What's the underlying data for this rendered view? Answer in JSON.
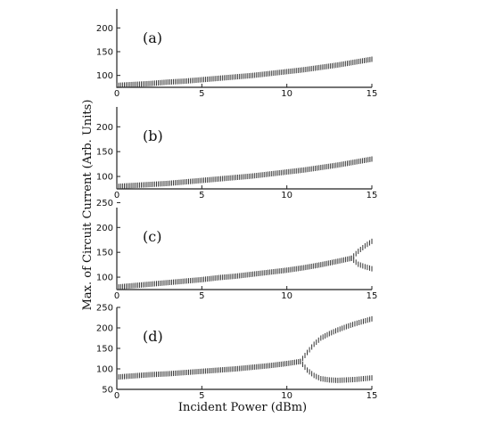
{
  "chart_data": [
    {
      "type": "scatter",
      "panel_label": "(a)",
      "xlim": [
        0,
        15
      ],
      "ylim": [
        75,
        240
      ],
      "x_ticks": [
        "0",
        "5",
        "10",
        "15"
      ],
      "y_ticks": [
        "100",
        "150",
        "200"
      ],
      "series": [
        {
          "x": [
            0,
            1,
            2,
            3,
            4,
            5,
            6,
            7,
            8,
            9,
            10,
            11,
            12,
            13,
            14,
            15
          ],
          "values": [
            79,
            81,
            83,
            86,
            88,
            91,
            94,
            97,
            100,
            104,
            108,
            112,
            117,
            122,
            128,
            134
          ]
        }
      ]
    },
    {
      "type": "scatter",
      "panel_label": "(b)",
      "xlim": [
        0,
        15
      ],
      "ylim": [
        75,
        240
      ],
      "x_ticks": [
        "0",
        "5",
        "10",
        "15"
      ],
      "y_ticks": [
        "100",
        "150",
        "200"
      ],
      "series": [
        {
          "x": [
            0,
            1,
            2,
            3,
            4,
            5,
            6,
            7,
            8,
            9,
            10,
            11,
            12,
            13,
            14,
            15
          ],
          "values": [
            80,
            82,
            84,
            86,
            89,
            92,
            95,
            98,
            101,
            105,
            109,
            113,
            118,
            123,
            129,
            135
          ]
        }
      ]
    },
    {
      "type": "scatter",
      "panel_label": "(c)",
      "xlim": [
        0,
        15
      ],
      "ylim": [
        75,
        240
      ],
      "x_ticks": [
        "0",
        "5",
        "10",
        "15"
      ],
      "y_ticks": [
        "100",
        "150",
        "200",
        "250"
      ],
      "series": [
        {
          "x": [
            0,
            1,
            2,
            3,
            4,
            5,
            6,
            7,
            8,
            9,
            10,
            11,
            12,
            13,
            13.8,
            14.2,
            14.6,
            15
          ],
          "values": [
            80,
            83,
            86,
            89,
            92,
            95,
            99,
            102,
            106,
            110,
            114,
            119,
            125,
            132,
            138,
            152,
            163,
            172
          ]
        },
        {
          "x": [
            13.8,
            14.2,
            14.6,
            15
          ],
          "values": [
            138,
            126,
            121,
            117
          ]
        }
      ]
    },
    {
      "type": "scatter",
      "panel_label": "(d)",
      "xlim": [
        0,
        15
      ],
      "ylim": [
        50,
        250
      ],
      "x_ticks": [
        "0",
        "5",
        "10",
        "15"
      ],
      "y_ticks": [
        "50",
        "100",
        "150",
        "200",
        "250"
      ],
      "series": [
        {
          "x": [
            0,
            1,
            2,
            3,
            4,
            5,
            6,
            7,
            8,
            9,
            10,
            10.8,
            11.2,
            11.6,
            12,
            12.5,
            13,
            13.5,
            14,
            14.5,
            15
          ],
          "values": [
            80,
            83,
            86,
            88,
            91,
            94,
            97,
            100,
            104,
            108,
            113,
            118,
            140,
            160,
            175,
            186,
            195,
            203,
            210,
            216,
            222
          ]
        },
        {
          "x": [
            10.8,
            11.2,
            11.6,
            12,
            12.5,
            13,
            13.5,
            14,
            14.5,
            15
          ],
          "values": [
            118,
            97,
            84,
            76,
            73,
            72,
            73,
            74,
            76,
            78
          ]
        }
      ]
    }
  ],
  "xlabel": "Incident Power (dBm)",
  "ylabel": "Max. of Circuit Current (Arb. Units)",
  "colors": {
    "marks": "#333333",
    "axes": "#222222",
    "background": "#ffffff"
  }
}
